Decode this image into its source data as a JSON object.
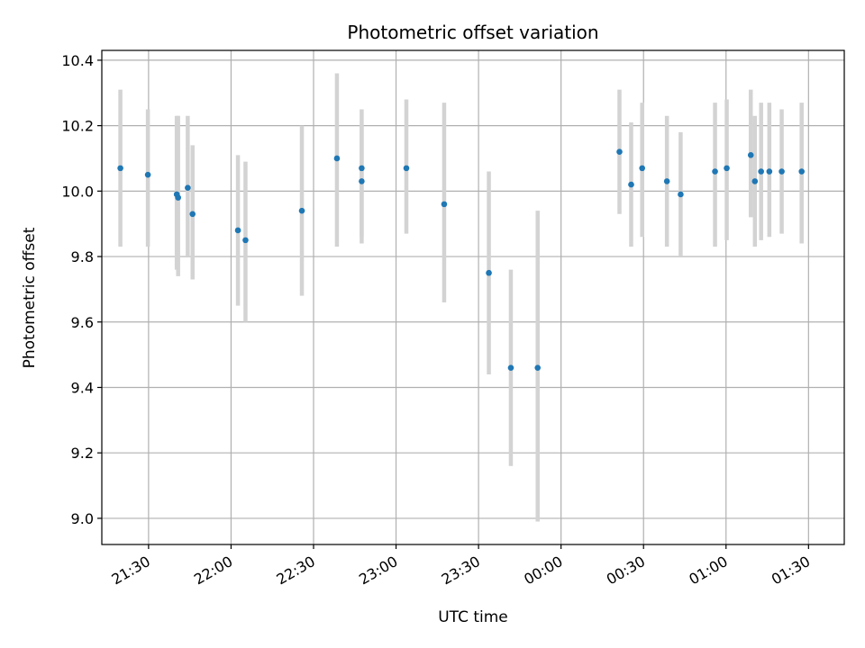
{
  "chart_data": {
    "type": "scatter",
    "title": "Photometric offset variation",
    "xlabel": "UTC time",
    "ylabel": "Photometric offset",
    "grid": true,
    "legend": "none",
    "ylim": [
      8.92,
      10.43
    ],
    "xlim": [
      "21:13",
      "01:43"
    ],
    "x_ticks": [
      "21:30",
      "22:00",
      "22:30",
      "23:00",
      "23:30",
      "00:00",
      "00:30",
      "01:00",
      "01:30"
    ],
    "y_ticks": [
      "9.0",
      "9.2",
      "9.4",
      "9.6",
      "9.8",
      "10.0",
      "10.2",
      "10.4"
    ],
    "colors": {
      "point": "#1f77b4",
      "errorbar": "#d3d3d3",
      "grid": "#b0b0b0"
    },
    "series": [
      {
        "points": [
          {
            "x": "21:19:45",
            "y": 10.07,
            "ylow": 9.83,
            "yhigh": 10.31
          },
          {
            "x": "21:29:45",
            "y": 10.05,
            "ylow": 9.83,
            "yhigh": 10.25
          },
          {
            "x": "21:40:15",
            "y": 9.99,
            "ylow": 9.76,
            "yhigh": 10.23
          },
          {
            "x": "21:40:45",
            "y": 9.98,
            "ylow": 9.74,
            "yhigh": 10.23
          },
          {
            "x": "21:44:15",
            "y": 10.01,
            "ylow": 9.8,
            "yhigh": 10.23
          },
          {
            "x": "21:46:00",
            "y": 9.93,
            "ylow": 9.73,
            "yhigh": 10.14
          },
          {
            "x": "22:02:30",
            "y": 9.88,
            "ylow": 9.65,
            "yhigh": 10.11
          },
          {
            "x": "22:05:15",
            "y": 9.85,
            "ylow": 9.6,
            "yhigh": 10.09
          },
          {
            "x": "22:25:45",
            "y": 9.94,
            "ylow": 9.68,
            "yhigh": 10.2
          },
          {
            "x": "22:38:30",
            "y": 10.1,
            "ylow": 9.83,
            "yhigh": 10.36
          },
          {
            "x": "22:47:30",
            "y": 10.07,
            "ylow": 9.86,
            "yhigh": 10.25
          },
          {
            "x": "22:47:30",
            "y": 10.03,
            "ylow": 9.84,
            "yhigh": 10.2
          },
          {
            "x": "23:03:45",
            "y": 10.07,
            "ylow": 9.87,
            "yhigh": 10.28
          },
          {
            "x": "23:17:30",
            "y": 9.96,
            "ylow": 9.66,
            "yhigh": 10.27
          },
          {
            "x": "23:33:45",
            "y": 9.75,
            "ylow": 9.44,
            "yhigh": 10.06
          },
          {
            "x": "23:41:45",
            "y": 9.46,
            "ylow": 9.16,
            "yhigh": 9.76
          },
          {
            "x": "23:51:30",
            "y": 9.46,
            "ylow": 8.99,
            "yhigh": 9.94
          },
          {
            "x": "00:21:15",
            "y": 10.12,
            "ylow": 9.93,
            "yhigh": 10.31
          },
          {
            "x": "00:25:30",
            "y": 10.02,
            "ylow": 9.83,
            "yhigh": 10.21
          },
          {
            "x": "00:29:30",
            "y": 10.07,
            "ylow": 9.86,
            "yhigh": 10.27
          },
          {
            "x": "00:38:30",
            "y": 10.03,
            "ylow": 9.83,
            "yhigh": 10.23
          },
          {
            "x": "00:43:30",
            "y": 9.99,
            "ylow": 9.8,
            "yhigh": 10.18
          },
          {
            "x": "00:56:00",
            "y": 10.06,
            "ylow": 9.83,
            "yhigh": 10.27
          },
          {
            "x": "01:00:15",
            "y": 10.07,
            "ylow": 9.85,
            "yhigh": 10.28
          },
          {
            "x": "01:09:00",
            "y": 10.11,
            "ylow": 9.92,
            "yhigh": 10.31
          },
          {
            "x": "01:10:30",
            "y": 10.03,
            "ylow": 9.83,
            "yhigh": 10.23
          },
          {
            "x": "01:12:45",
            "y": 10.06,
            "ylow": 9.85,
            "yhigh": 10.27
          },
          {
            "x": "01:15:45",
            "y": 10.06,
            "ylow": 9.86,
            "yhigh": 10.27
          },
          {
            "x": "01:20:15",
            "y": 10.06,
            "ylow": 9.87,
            "yhigh": 10.25
          },
          {
            "x": "01:27:30",
            "y": 10.06,
            "ylow": 9.84,
            "yhigh": 10.27
          }
        ]
      }
    ]
  }
}
